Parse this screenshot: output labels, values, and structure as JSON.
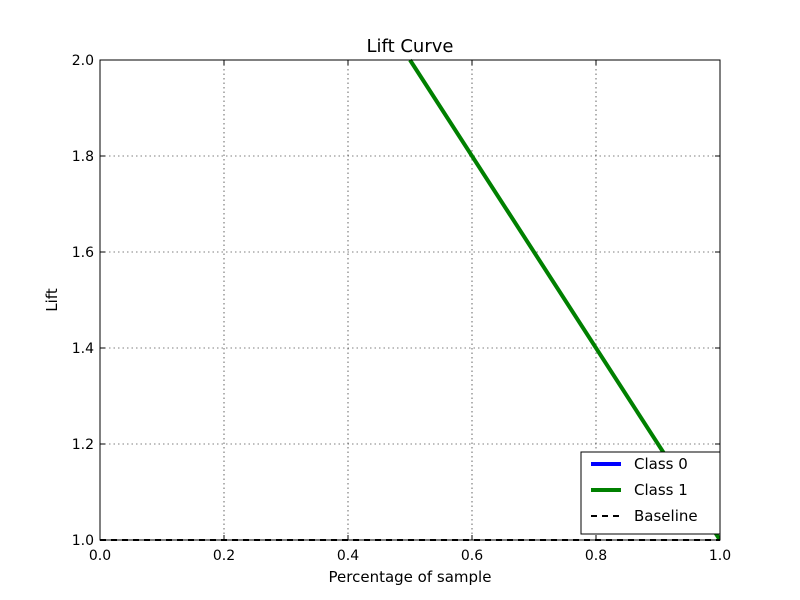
{
  "chart_data": {
    "type": "line",
    "title": "Lift Curve",
    "xlabel": "Percentage of sample",
    "ylabel": "Lift",
    "xlim": [
      0.0,
      1.0
    ],
    "ylim": [
      1.0,
      2.0
    ],
    "x_ticks": [
      "0.0",
      "0.2",
      "0.4",
      "0.6",
      "0.8",
      "1.0"
    ],
    "y_ticks": [
      "1.0",
      "1.2",
      "1.4",
      "1.6",
      "1.8",
      "2.0"
    ],
    "grid": true,
    "legend_position": "bottom-right",
    "series": [
      {
        "name": "Class 0",
        "color": "#0000ff",
        "style": "solid",
        "x": [],
        "y": []
      },
      {
        "name": "Class 1",
        "color": "#008000",
        "style": "solid",
        "x": [
          0.5,
          1.0
        ],
        "y": [
          2.0,
          1.0
        ]
      },
      {
        "name": "Baseline",
        "color": "#000000",
        "style": "dashed",
        "x": [
          0.0,
          1.0
        ],
        "y": [
          1.0,
          1.0
        ]
      }
    ]
  }
}
